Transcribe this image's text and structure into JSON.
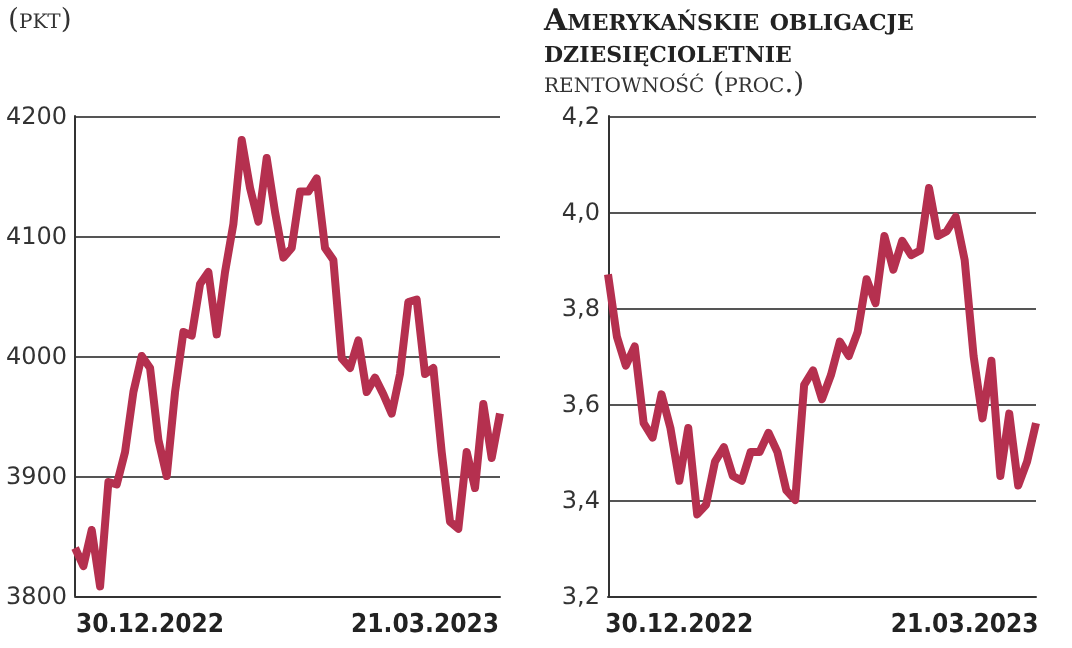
{
  "chart_data": [
    {
      "type": "line",
      "subtitle": "(pkt)",
      "color": "#b5304f",
      "grid": "y",
      "categories": [
        null,
        null,
        null,
        null,
        null,
        null,
        null,
        null,
        null,
        "30.12.2022",
        null,
        null,
        null,
        null,
        null,
        null,
        null,
        null,
        null,
        null,
        null,
        null,
        null,
        null,
        null,
        null,
        null,
        null,
        null,
        null,
        null,
        null,
        null,
        null,
        null,
        null,
        null,
        null,
        null,
        null,
        null,
        null,
        "21.03.2023",
        null,
        null,
        null,
        null,
        null,
        null,
        null,
        null,
        null
      ],
      "values": [
        3840,
        3825,
        3855,
        3808,
        3895,
        3893,
        3920,
        3970,
        4000,
        3990,
        3930,
        3900,
        3970,
        4020,
        4017,
        4060,
        4070,
        4018,
        4070,
        4110,
        4180,
        4140,
        4112,
        4165,
        4120,
        4082,
        4090,
        4137,
        4137,
        4148,
        4090,
        4080,
        3998,
        3990,
        4013,
        3970,
        3982,
        3968,
        3952,
        3985,
        4045,
        4047,
        3985,
        3990,
        3920,
        3862,
        3856,
        3920,
        3890,
        3960,
        3915,
        3952
      ],
      "ylim": [
        3800,
        4200
      ],
      "yticks": [
        3800,
        3900,
        4000,
        4100,
        4200
      ]
    },
    {
      "type": "line",
      "title": "Amerykańskie obligacje dziesięcioletnie",
      "subtitle": "rentowność (proc.)",
      "color": "#b5304f",
      "grid": "y",
      "categories": [
        null,
        null,
        null,
        null,
        null,
        null,
        null,
        null,
        "30.12.2022",
        null,
        null,
        null,
        null,
        null,
        null,
        null,
        null,
        null,
        null,
        null,
        null,
        null,
        null,
        null,
        null,
        null,
        null,
        null,
        null,
        null,
        null,
        null,
        null,
        null,
        null,
        null,
        null,
        null,
        null,
        null,
        "21.03.2023",
        null,
        null,
        null,
        null,
        null,
        null,
        null,
        null
      ],
      "values": [
        3.87,
        3.74,
        3.68,
        3.72,
        3.56,
        3.53,
        3.62,
        3.55,
        3.44,
        3.55,
        3.37,
        3.39,
        3.48,
        3.51,
        3.45,
        3.44,
        3.5,
        3.5,
        3.54,
        3.5,
        3.42,
        3.4,
        3.64,
        3.67,
        3.61,
        3.66,
        3.73,
        3.7,
        3.75,
        3.86,
        3.81,
        3.95,
        3.88,
        3.94,
        3.91,
        3.92,
        4.05,
        3.95,
        3.96,
        3.99,
        3.9,
        3.7,
        3.57,
        3.69,
        3.45,
        3.58,
        3.43,
        3.48,
        3.56
      ],
      "ylim": [
        3.2,
        4.2
      ],
      "yticks": [
        {
          "value": 3.2,
          "label": "3,2"
        },
        {
          "value": 3.4,
          "label": "3,4"
        },
        {
          "value": 3.6,
          "label": "3,6"
        },
        {
          "value": 3.8,
          "label": "3,8"
        },
        {
          "value": 4.0,
          "label": "4,0"
        },
        {
          "value": 4.2,
          "label": "4,2"
        }
      ]
    }
  ]
}
